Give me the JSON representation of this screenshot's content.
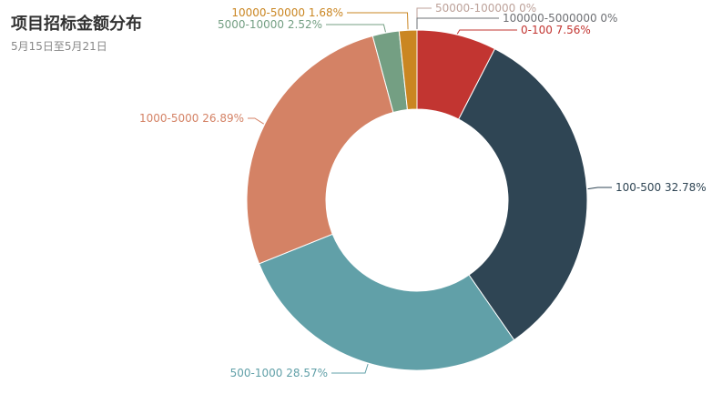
{
  "header": {
    "title": "项目招标金额分布",
    "subtitle": "5月15日至5月21日"
  },
  "chart_data": {
    "type": "pie",
    "variant": "donut",
    "title": "项目招标金额分布",
    "subtitle": "5月15日至5月21日",
    "unit": "%",
    "slices": [
      {
        "name": "0-100",
        "value": 7.56,
        "label": "0-100 7.56%",
        "color": "#c23531"
      },
      {
        "name": "100-500",
        "value": 32.78,
        "label": "100-500 32.78%",
        "color": "#2f4554"
      },
      {
        "name": "500-1000",
        "value": 28.57,
        "label": "500-1000 28.57%",
        "color": "#61a0a8"
      },
      {
        "name": "1000-5000",
        "value": 26.89,
        "label": "1000-5000 26.89%",
        "color": "#d48265"
      },
      {
        "name": "5000-10000",
        "value": 2.52,
        "label": "5000-10000 2.52%",
        "color": "#749f83"
      },
      {
        "name": "10000-50000",
        "value": 1.68,
        "label": "10000-50000 1.68%",
        "color": "#ca8622"
      },
      {
        "name": "50000-100000",
        "value": 0,
        "label": "50000-100000 0%",
        "color": "#bda29a"
      },
      {
        "name": "100000-5000000",
        "value": 0,
        "label": "100000-5000000 0%",
        "color": "#6e7074"
      }
    ]
  }
}
